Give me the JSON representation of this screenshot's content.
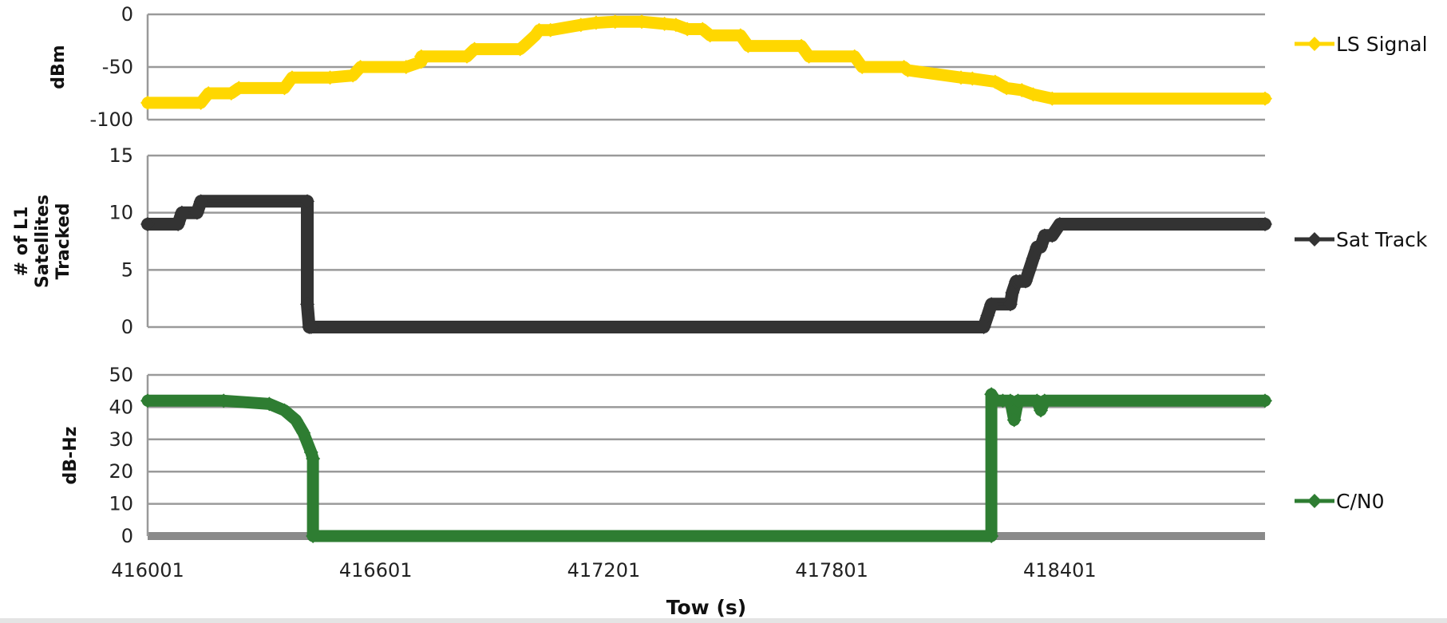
{
  "chart_data": {
    "type": "line",
    "xlabel": "Tow (s)",
    "x_ticks": [
      "416001",
      "416601",
      "417201",
      "417801",
      "418401"
    ],
    "xlim": [
      416001,
      418941
    ],
    "grid": true,
    "legend_placement": "right",
    "panels": [
      {
        "ylabel": "dBm",
        "ylim": [
          -100,
          0
        ],
        "y_ticks": [
          "0",
          "-50",
          "-100"
        ],
        "series": [
          {
            "name": "LS Signal",
            "color": "#FFD700",
            "x": [
              416001,
              416141,
              416161,
              416221,
              416241,
              416361,
              416381,
              416481,
              416541,
              416561,
              416681,
              416721,
              416721,
              416841,
              416861,
              416981,
              416991,
              417021,
              417031,
              417061,
              417141,
              417181,
              417231,
              417301,
              417361,
              417391,
              417421,
              417461,
              417481,
              417561,
              417581,
              417721,
              417741,
              417861,
              417881,
              417991,
              418001,
              418141,
              418171,
              418231,
              418261,
              418301,
              418331,
              418381,
              418941
            ],
            "y": [
              -84,
              -84,
              -75,
              -75,
              -70,
              -70,
              -60,
              -60,
              -58,
              -50,
              -50,
              -45,
              -40,
              -40,
              -33,
              -33,
              -30,
              -20,
              -15,
              -15,
              -10,
              -8,
              -7,
              -7,
              -9,
              -10,
              -14,
              -14,
              -20,
              -20,
              -30,
              -30,
              -40,
              -40,
              -50,
              -50,
              -53,
              -60,
              -61,
              -64,
              -70,
              -72,
              -76,
              -80,
              -80
            ]
          }
        ]
      },
      {
        "ylabel": "# of L1 Satellites Tracked",
        "ylim": [
          0,
          15
        ],
        "y_ticks": [
          "15",
          "10",
          "5",
          "0"
        ],
        "series": [
          {
            "name": "Sat Track",
            "color": "#333333",
            "x": [
              416001,
              416081,
              416091,
              416131,
              416141,
              416421,
              416421,
              416426,
              416431,
              418201,
              418211,
              418221,
              418271,
              418276,
              418286,
              418296,
              418311,
              418321,
              418331,
              418341,
              418351,
              418361,
              418381,
              418401,
              418941
            ],
            "y": [
              9,
              9,
              10,
              10,
              11,
              11,
              2,
              0,
              0,
              0,
              1,
              2,
              2,
              3,
              4,
              4,
              4,
              5,
              6,
              7,
              7,
              8,
              8,
              9,
              9
            ]
          }
        ]
      },
      {
        "ylabel": "dB-Hz",
        "ylim": [
          0,
          50
        ],
        "y_ticks": [
          "50",
          "40",
          "30",
          "20",
          "10",
          "0"
        ],
        "series": [
          {
            "name": "C/N0",
            "color": "#2E7D32",
            "x": [
              416001,
              416201,
              416321,
              416361,
              416391,
              416411,
              416431,
              416436,
              416436,
              418221,
              418221,
              418231,
              418251,
              418271,
              418281,
              418291,
              418341,
              418351,
              418361,
              418941
            ],
            "y": [
              42,
              42,
              41,
              39,
              36,
              32,
              26,
              24,
              0,
              0,
              44,
              42,
              42,
              42,
              36,
              42,
              42,
              39,
              42,
              42
            ]
          }
        ]
      }
    ]
  }
}
